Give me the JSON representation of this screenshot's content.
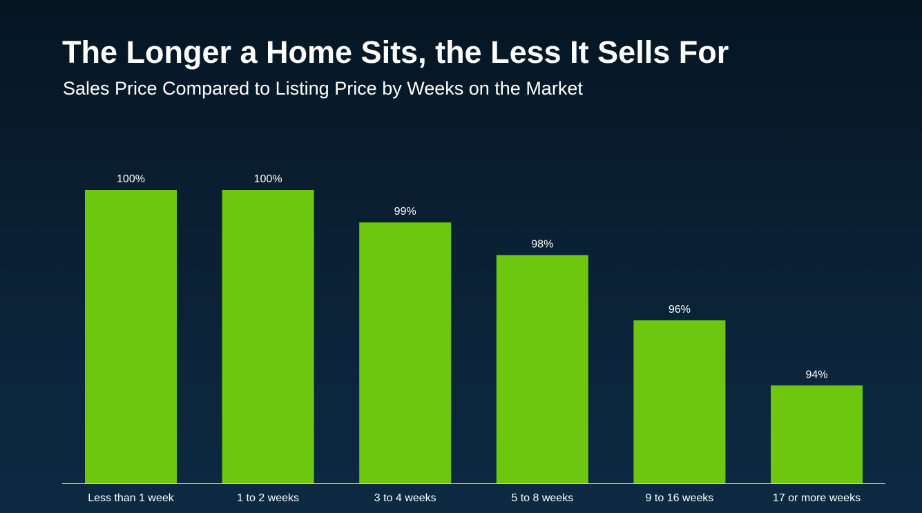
{
  "title": "The Longer a Home Sits, the Less It Sells For",
  "subtitle": "Sales Price Compared to Listing Price by Weeks on the Market",
  "colors": {
    "bar": "#6dc70f",
    "text": "#ffffff",
    "axis": "#c8d0d8"
  },
  "chart_data": {
    "type": "bar",
    "categories": [
      "Less than 1 week",
      "1 to 2 weeks",
      "3 to 4 weeks",
      "5 to 8 weeks",
      "9 to 16 weeks",
      "17 or more weeks"
    ],
    "values": [
      100,
      100,
      99,
      98,
      96,
      94
    ],
    "value_labels": [
      "100%",
      "100%",
      "99%",
      "98%",
      "96%",
      "94%"
    ],
    "ylim": [
      91,
      100
    ],
    "grid": false,
    "legend": "none",
    "xlabel": "",
    "ylabel": ""
  }
}
